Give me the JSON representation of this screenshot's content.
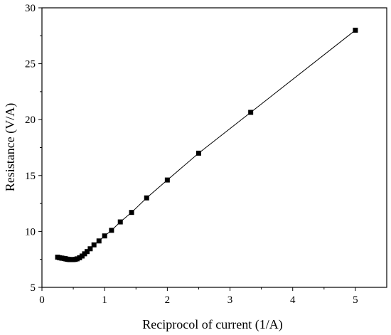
{
  "chart_data": {
    "type": "scatter",
    "title": "",
    "xlabel": "Reciprocol of current (1/A)",
    "ylabel": "Resistance (V/A)",
    "xlim": [
      0,
      5.5
    ],
    "ylim": [
      5,
      30
    ],
    "xticks": [
      0,
      1,
      2,
      3,
      4,
      5
    ],
    "yticks": [
      5,
      10,
      15,
      20,
      25,
      30
    ],
    "xtick_labels": [
      "0",
      "1",
      "2",
      "3",
      "4",
      "5"
    ],
    "ytick_labels": [
      "5",
      "10",
      "15",
      "20",
      "25",
      "30"
    ],
    "grid": false,
    "legend": false,
    "marker": "square",
    "line": true,
    "series": [
      {
        "color": "#000000",
        "points": [
          [
            0.25,
            7.7
          ],
          [
            0.28,
            7.65
          ],
          [
            0.31,
            7.62
          ],
          [
            0.33,
            7.6
          ],
          [
            0.36,
            7.57
          ],
          [
            0.38,
            7.55
          ],
          [
            0.4,
            7.52
          ],
          [
            0.42,
            7.5
          ],
          [
            0.44,
            7.49
          ],
          [
            0.46,
            7.48
          ],
          [
            0.48,
            7.48
          ],
          [
            0.5,
            7.49
          ],
          [
            0.53,
            7.5
          ],
          [
            0.56,
            7.55
          ],
          [
            0.6,
            7.65
          ],
          [
            0.64,
            7.8
          ],
          [
            0.68,
            8.0
          ],
          [
            0.72,
            8.2
          ],
          [
            0.77,
            8.45
          ],
          [
            0.83,
            8.8
          ],
          [
            0.91,
            9.15
          ],
          [
            1.0,
            9.6
          ],
          [
            1.11,
            10.1
          ],
          [
            1.25,
            10.85
          ],
          [
            1.43,
            11.7
          ],
          [
            1.67,
            13.0
          ],
          [
            2.0,
            14.6
          ],
          [
            2.5,
            17.0
          ],
          [
            3.33,
            20.65
          ],
          [
            5.0,
            28.0
          ]
        ]
      }
    ]
  }
}
